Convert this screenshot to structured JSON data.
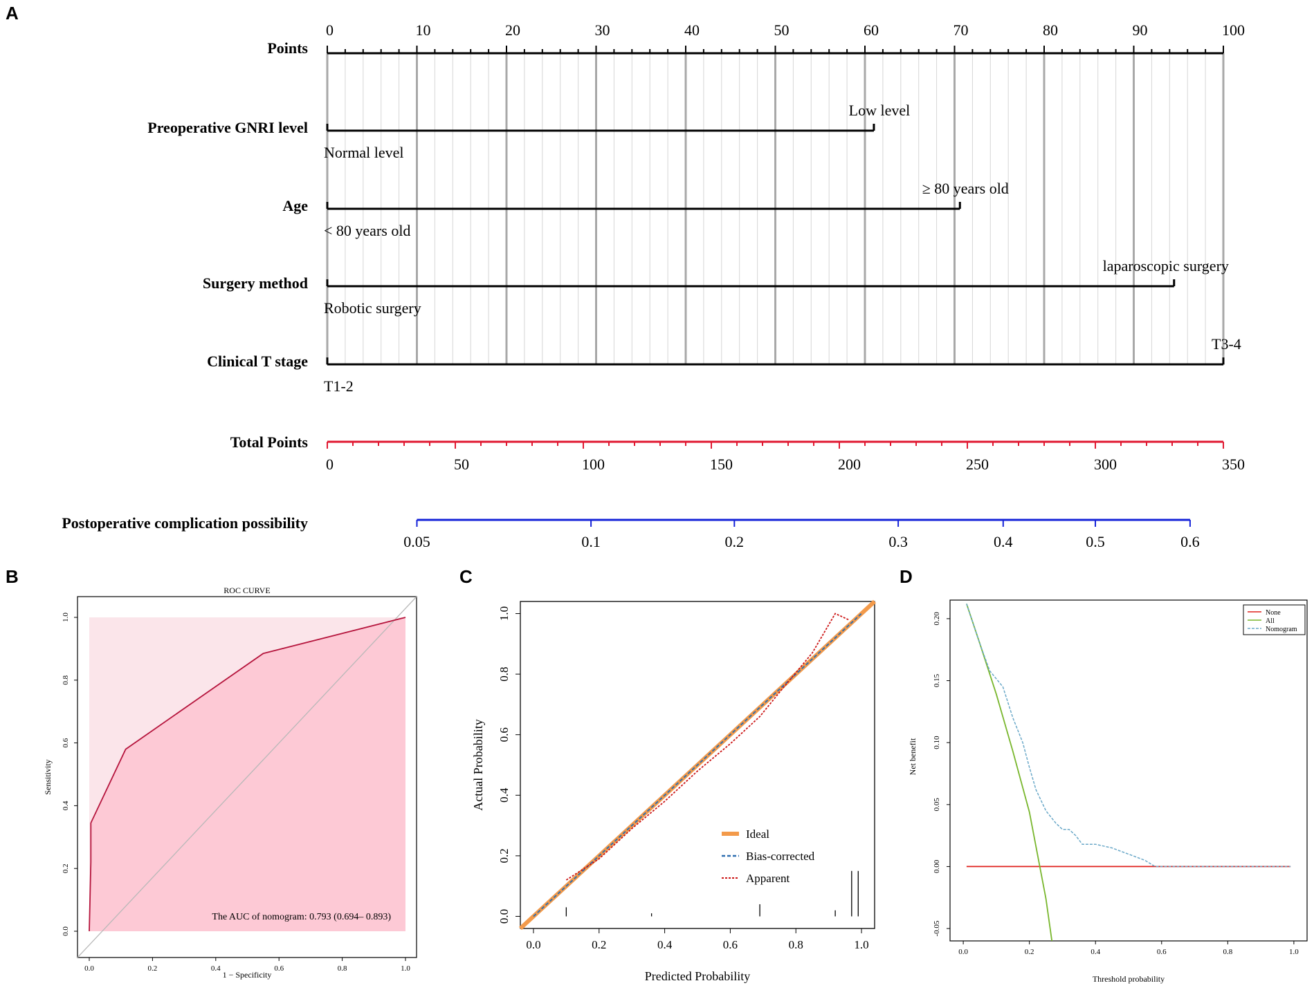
{
  "panels": {
    "a": {
      "letter": "A"
    },
    "b": {
      "letter": "B"
    },
    "c": {
      "letter": "C"
    },
    "d": {
      "letter": "D"
    }
  },
  "chart_data": [
    {
      "type": "nomogram",
      "rows": [
        {
          "label": "Points",
          "ticks": [
            "0",
            "10",
            "20",
            "30",
            "40",
            "50",
            "60",
            "70",
            "80",
            "90",
            "100"
          ],
          "range": [
            0,
            100
          ]
        },
        {
          "label": "Preoperative GNRI level",
          "low_label": "Normal level",
          "high_label": "Low level",
          "points": 61
        },
        {
          "label": "Age",
          "low_label": "< 80 years old",
          "high_label": "≥ 80 years old",
          "points": 70.6
        },
        {
          "label": "Surgery method",
          "low_label": "Robotic surgery",
          "high_label": "laparoscopic surgery",
          "points": 94.5
        },
        {
          "label": "Clinical T stage",
          "low_label": "T1-2",
          "high_label": "T3-4",
          "points": 100
        }
      ],
      "total_points": {
        "label": "Total Points",
        "ticks": [
          "0",
          "50",
          "100",
          "150",
          "200",
          "250",
          "300",
          "350"
        ],
        "range": [
          0,
          350
        ]
      },
      "probability": {
        "label": "Postoperative complication possibility",
        "ticks": [
          "0.05",
          "0.1",
          "0.2",
          "0.3",
          "0.4",
          "0.5",
          "0.6"
        ],
        "tick_total_points": [
          35,
          103,
          159,
          223,
          264,
          300,
          337
        ]
      }
    },
    {
      "type": "line",
      "title": "ROC CURVE",
      "xlabel": "1 − Specificity",
      "ylabel": "Sensitivity",
      "xlim": [
        0,
        1
      ],
      "ylim": [
        0,
        1
      ],
      "xticks": [
        "0.0",
        "0.2",
        "0.4",
        "0.6",
        "0.8",
        "1.0"
      ],
      "yticks": [
        "0.0",
        "0.2",
        "0.4",
        "0.6",
        "0.8",
        "1.0"
      ],
      "series": [
        {
          "name": "ROC",
          "color": "#b5143c",
          "x": [
            0,
            0.005,
            0.005,
            0.115,
            0.55,
            1.0
          ],
          "y": [
            0,
            0.22,
            0.345,
            0.58,
            0.885,
            1.0
          ]
        }
      ],
      "annotation": "The AUC of nomogram: 0.793 (0.694– 0.893)"
    },
    {
      "type": "line",
      "title": "",
      "xlabel": "Predicted Probability",
      "ylabel": "Actual Probability",
      "xlim": [
        -0.04,
        1.04
      ],
      "ylim": [
        -0.04,
        1.04
      ],
      "xticks": [
        "0.0",
        "0.2",
        "0.4",
        "0.6",
        "0.8",
        "1.0"
      ],
      "yticks": [
        "0.0",
        "0.2",
        "0.4",
        "0.6",
        "0.8",
        "1.0"
      ],
      "legend": [
        "Ideal",
        "Bias-corrected",
        "Apparent"
      ],
      "series": [
        {
          "name": "Ideal",
          "color": "#f39a4a",
          "x": [
            -0.04,
            1.04
          ],
          "y": [
            -0.04,
            1.04
          ]
        },
        {
          "name": "Bias-corrected",
          "color": "#2e6fb0",
          "x": [
            0.0,
            1.0
          ],
          "y": [
            0.0,
            1.0
          ]
        },
        {
          "name": "Apparent",
          "color": "#cc1414",
          "x": [
            0.1,
            0.2,
            0.3,
            0.4,
            0.5,
            0.6,
            0.69,
            0.75,
            0.85,
            0.92,
            0.96
          ],
          "y": [
            0.12,
            0.19,
            0.29,
            0.38,
            0.48,
            0.57,
            0.66,
            0.74,
            0.87,
            1.0,
            0.98
          ]
        }
      ],
      "rug": [
        {
          "x": 0.1,
          "h": 0.03
        },
        {
          "x": 0.36,
          "h": 0.01
        },
        {
          "x": 0.69,
          "h": 0.04
        },
        {
          "x": 0.92,
          "h": 0.02
        },
        {
          "x": 0.97,
          "h": 0.15
        },
        {
          "x": 0.99,
          "h": 0.15
        }
      ]
    },
    {
      "type": "line",
      "title": "",
      "xlabel": "Threshold probability",
      "ylabel": "Net benefit",
      "xlim": [
        -0.04,
        1.04
      ],
      "ylim": [
        -0.06,
        0.215
      ],
      "xticks": [
        "0.0",
        "0.2",
        "0.4",
        "0.6",
        "0.8",
        "1.0"
      ],
      "yticks": [
        "-0.05",
        "0.00",
        "0.05",
        "0.10",
        "0.15",
        "0.20"
      ],
      "legend": [
        "None",
        "All",
        "Nomogram"
      ],
      "series": [
        {
          "name": "None",
          "color": "#e0201b",
          "x": [
            0.01,
            0.99
          ],
          "y": [
            0,
            0
          ]
        },
        {
          "name": "All",
          "color": "#78b62c",
          "x": [
            0.01,
            0.05,
            0.1,
            0.15,
            0.2,
            0.25,
            0.268
          ],
          "y": [
            0.212,
            0.18,
            0.139,
            0.093,
            0.044,
            -0.026,
            -0.06
          ]
        },
        {
          "name": "Nomogram",
          "color": "#6aa8c8",
          "x": [
            0.01,
            0.05,
            0.08,
            0.12,
            0.15,
            0.18,
            0.2,
            0.22,
            0.25,
            0.28,
            0.3,
            0.32,
            0.34,
            0.36,
            0.4,
            0.45,
            0.5,
            0.55,
            0.58,
            0.6,
            0.7,
            0.8,
            0.9,
            0.99
          ],
          "y": [
            0.212,
            0.18,
            0.158,
            0.145,
            0.12,
            0.1,
            0.08,
            0.062,
            0.045,
            0.035,
            0.03,
            0.03,
            0.025,
            0.018,
            0.018,
            0.015,
            0.01,
            0.005,
            0.0,
            0.0,
            0.0,
            0.0,
            0.0,
            0.0
          ]
        }
      ]
    }
  ]
}
